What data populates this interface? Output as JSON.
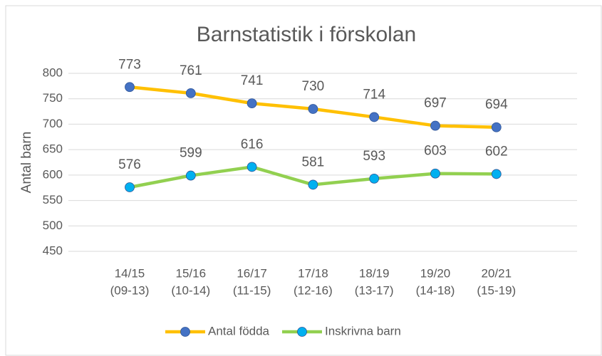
{
  "chart_data": {
    "type": "line",
    "title": "Barnstatistik i förskolan",
    "y_label": "Antal barn",
    "categories": [
      [
        "14/15",
        "(09-13)"
      ],
      [
        "15/16",
        "(10-14)"
      ],
      [
        "16/17",
        "(11-15)"
      ],
      [
        "17/18",
        "(12-16)"
      ],
      [
        "18/19",
        "(13-17)"
      ],
      [
        "19/20",
        "(14-18)"
      ],
      [
        "20/21",
        "(15-19)"
      ]
    ],
    "series": [
      {
        "name": "Antal födda",
        "color": "#FFC000",
        "marker_color": "#4472C4",
        "values": [
          773,
          761,
          741,
          730,
          714,
          697,
          694
        ]
      },
      {
        "name": "Inskrivna barn",
        "color": "#92D050",
        "marker_color": "#00B0F0",
        "values": [
          576,
          599,
          616,
          581,
          593,
          603,
          602
        ]
      }
    ],
    "ylim": [
      450,
      800
    ],
    "yticks": [
      450,
      500,
      550,
      600,
      650,
      700,
      750,
      800
    ],
    "grid": true,
    "legend": "bottom"
  }
}
